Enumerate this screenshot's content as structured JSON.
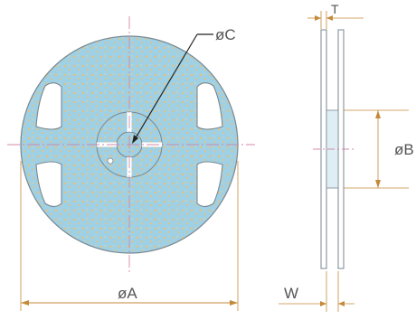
{
  "labels": {
    "diameter_a": "øA",
    "diameter_b": "øB",
    "diameter_c": "øC",
    "thickness_t": "T",
    "width_w": "W"
  },
  "colors": {
    "reel_fill": "#9fd0e4",
    "speckle": "#e8c07a",
    "outline": "#7a8790",
    "centerline": "#d08aa8",
    "dimension": "#c48a3a",
    "text": "#555555"
  }
}
